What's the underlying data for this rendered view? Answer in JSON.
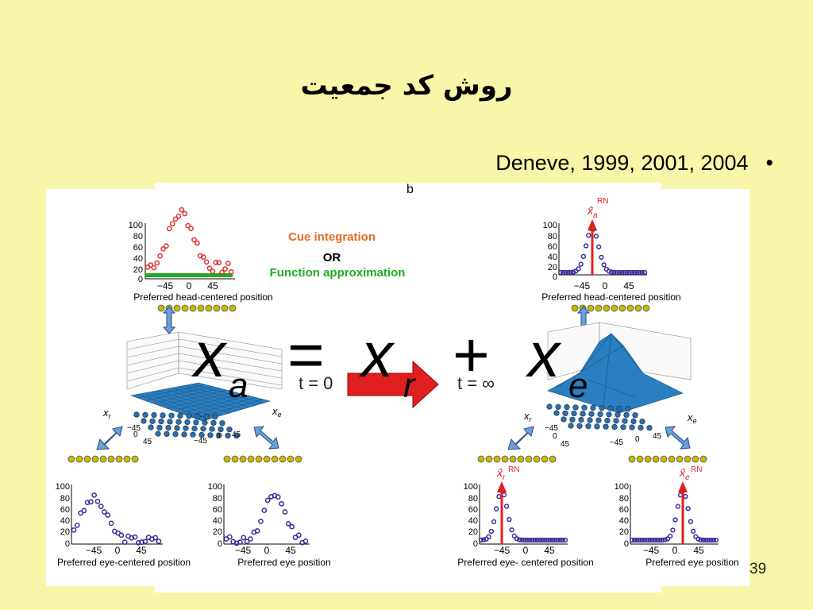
{
  "slide": {
    "title": "روش کد جمعیت",
    "bullet": {
      "marker": "•",
      "text": "Deneve, 1999, 2001, 2004"
    },
    "slide_number": "39"
  },
  "figure": {
    "panel_label_b": "b",
    "cue_integration": "Cue integration",
    "or": "OR",
    "function_approximation": "Function approximation",
    "xlabel_head": "Preferred head-centered position",
    "xlabel_eye_centered": "Preferred eye-centered position",
    "xlabel_eye_centered_right": "Preferred eye- centered position",
    "xlabel_eye": "Preferred eye position",
    "y_ticks": [
      "100",
      "80",
      "60",
      "40",
      "20",
      "0"
    ],
    "x_ticks": [
      "−45",
      "0",
      "45"
    ],
    "t0": "t = 0",
    "tinf": "t = ∞",
    "hat_xa": "x̂",
    "hat_sub_a": "a",
    "hat_sub_r": "r",
    "hat_sub_e": "e",
    "rn": "RN",
    "axis_xr": "x",
    "axis_xr_sub": "r",
    "axis_xe": "x",
    "axis_xe_sub": "e",
    "grid_ticks_left": [
      "−45",
      "0",
      "45"
    ],
    "grid_ticks_right": [
      "−45",
      "0",
      "45"
    ]
  },
  "equation": {
    "lhs": "x",
    "lhs_sub": "a",
    "equals": "=",
    "term1": "x",
    "term1_sub": "r",
    "plus": "+",
    "term2": "x",
    "term2_sub": "e"
  },
  "colors": {
    "background": "#f8f6a8",
    "red_dots": "#e03030",
    "green": "#22aa22",
    "purple": "#3a2a9a",
    "arrow": "#e02020",
    "surface": "#2a7fc0",
    "neuron": "#c8b800"
  }
}
